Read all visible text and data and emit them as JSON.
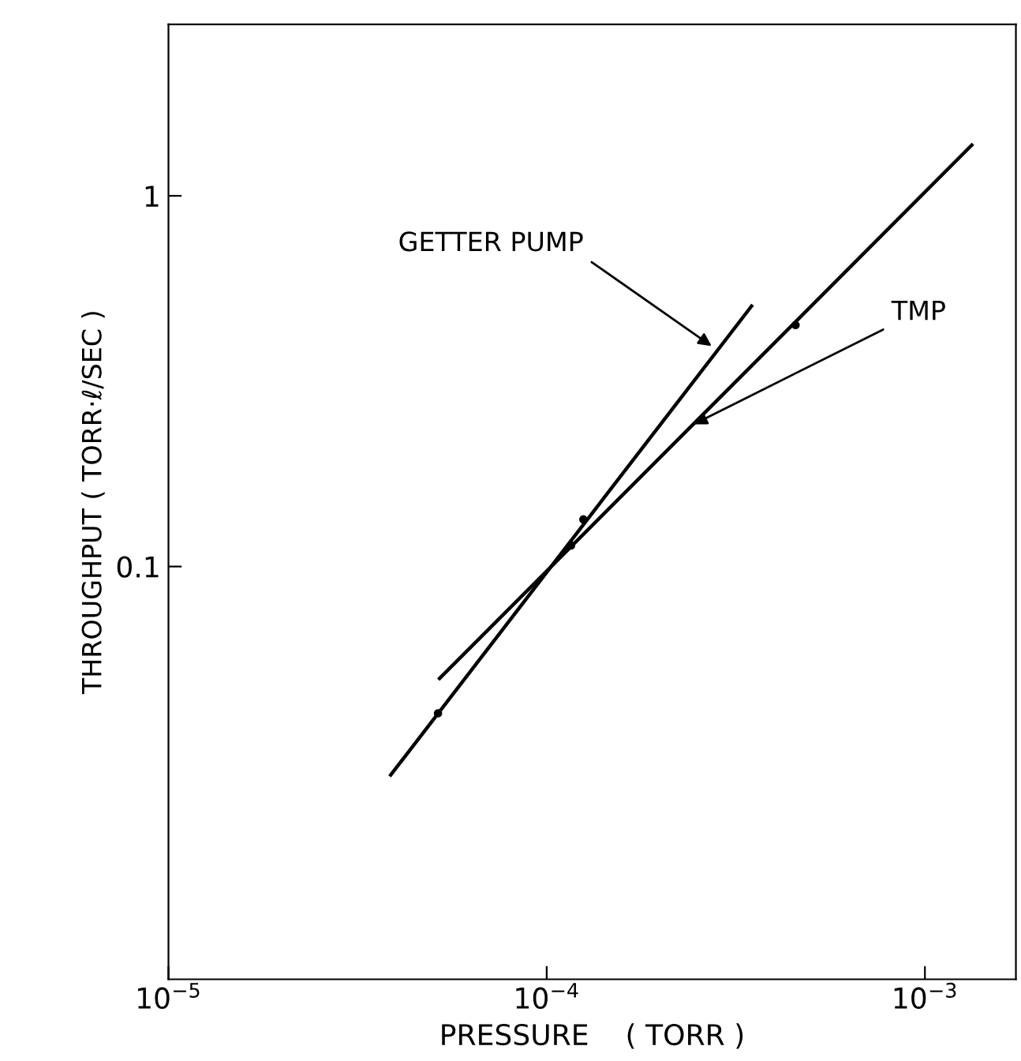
{
  "chart_data": {
    "type": "line",
    "xlabel": "PRESSURE    ( TORR )",
    "ylabel": "THROUGHPUT ( TORR·ℓ/SEC )",
    "log": "xy",
    "grid": false,
    "xlim": [
      1e-05,
      0.00174
    ],
    "ylim": [
      0.0077,
      2.9
    ],
    "xticks": [
      {
        "value": 1e-05,
        "label": "10$^{−5}$"
      },
      {
        "value": 0.0001,
        "label": "10$^{−4}$"
      },
      {
        "value": 0.001,
        "label": "10$^{−3}$"
      }
    ],
    "yticks": [
      {
        "value": 0.1,
        "label": "0.1"
      },
      {
        "value": 1,
        "label": "1"
      }
    ],
    "series": [
      {
        "color": "#000000",
        "x": [
          5.21e-05,
          0.00133
        ],
        "values": [
          0.0499,
          1.37
        ]
      },
      {
        "color": "#000000",
        "x": [
          3.87e-05,
          0.000348
        ],
        "values": [
          0.0274,
          0.504
        ]
      },
      {
        "type": "scatter",
        "color": "#000000",
        "marker": "circle",
        "x": [
          5.16e-05,
          0.000116,
          0.000125,
          0.000455
        ],
        "values": [
          0.0402,
          0.114,
          0.134,
          0.448
        ]
      }
    ],
    "annotations": [
      {
        "text": "GETTER PUMP",
        "x": 0.000279,
        "y": 0.387
      },
      {
        "text": "TMP",
        "x": 0.000239,
        "y": 0.239
      }
    ]
  }
}
